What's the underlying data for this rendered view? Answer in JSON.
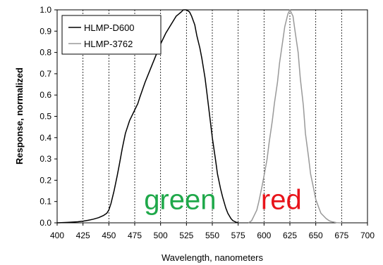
{
  "chart_data": {
    "type": "line",
    "title": "",
    "xlabel": "Wavelength, nanometers",
    "ylabel": "Response, normalized",
    "xlim": [
      400,
      700
    ],
    "ylim": [
      0,
      1.0
    ],
    "x_ticks": [
      "400",
      "425",
      "450",
      "475",
      "500",
      "525",
      "550",
      "575",
      "600",
      "625",
      "650",
      "675",
      "700"
    ],
    "y_ticks": [
      "0.0",
      "0.1",
      "0.2",
      "0.3",
      "0.4",
      "0.5",
      "0.6",
      "0.7",
      "0.8",
      "0.9",
      "1.0"
    ],
    "grid": "vertical dashed",
    "legend_position": "top-left",
    "series": [
      {
        "name": "HLMP-D600",
        "color": "#000000",
        "x": [
          400,
          410,
          420,
          425,
          430,
          435,
          440,
          445,
          448,
          450,
          452,
          455,
          458,
          460,
          463,
          466,
          470,
          475,
          478,
          480,
          485,
          490,
          495,
          500,
          505,
          510,
          515,
          520,
          522,
          525,
          528,
          530,
          533,
          535,
          538,
          540,
          543,
          545,
          548,
          550,
          553,
          555,
          558,
          560,
          563,
          565,
          568,
          570,
          573,
          575
        ],
        "y": [
          0.0,
          0.002,
          0.005,
          0.008,
          0.012,
          0.017,
          0.024,
          0.035,
          0.045,
          0.06,
          0.09,
          0.15,
          0.22,
          0.27,
          0.35,
          0.42,
          0.48,
          0.53,
          0.56,
          0.59,
          0.66,
          0.72,
          0.78,
          0.84,
          0.89,
          0.93,
          0.97,
          0.99,
          1.0,
          1.0,
          0.99,
          0.97,
          0.93,
          0.88,
          0.82,
          0.77,
          0.68,
          0.6,
          0.48,
          0.4,
          0.3,
          0.23,
          0.16,
          0.12,
          0.07,
          0.045,
          0.02,
          0.01,
          0.003,
          0.0
        ]
      },
      {
        "name": "HLMP-3762",
        "color": "#999999",
        "x": [
          585,
          588,
          590,
          593,
          595,
          598,
          600,
          603,
          605,
          608,
          610,
          613,
          615,
          618,
          620,
          623,
          625,
          628,
          630,
          633,
          635,
          638,
          640,
          643,
          645,
          648,
          650,
          653,
          655,
          658,
          660,
          663,
          665,
          668,
          670,
          673,
          675
        ],
        "y": [
          0.0,
          0.01,
          0.03,
          0.06,
          0.1,
          0.17,
          0.22,
          0.3,
          0.38,
          0.48,
          0.56,
          0.66,
          0.75,
          0.85,
          0.92,
          0.98,
          1.0,
          0.97,
          0.9,
          0.8,
          0.68,
          0.55,
          0.42,
          0.31,
          0.23,
          0.16,
          0.11,
          0.07,
          0.045,
          0.03,
          0.02,
          0.01,
          0.006,
          0.003,
          0.001,
          0.0,
          0.0
        ]
      }
    ],
    "annotations": [
      {
        "text": "green",
        "x": 484,
        "y": 0.065,
        "color": "#1fa84a"
      },
      {
        "text": "red",
        "x": 597,
        "y": 0.065,
        "color": "#e8141b"
      }
    ]
  }
}
